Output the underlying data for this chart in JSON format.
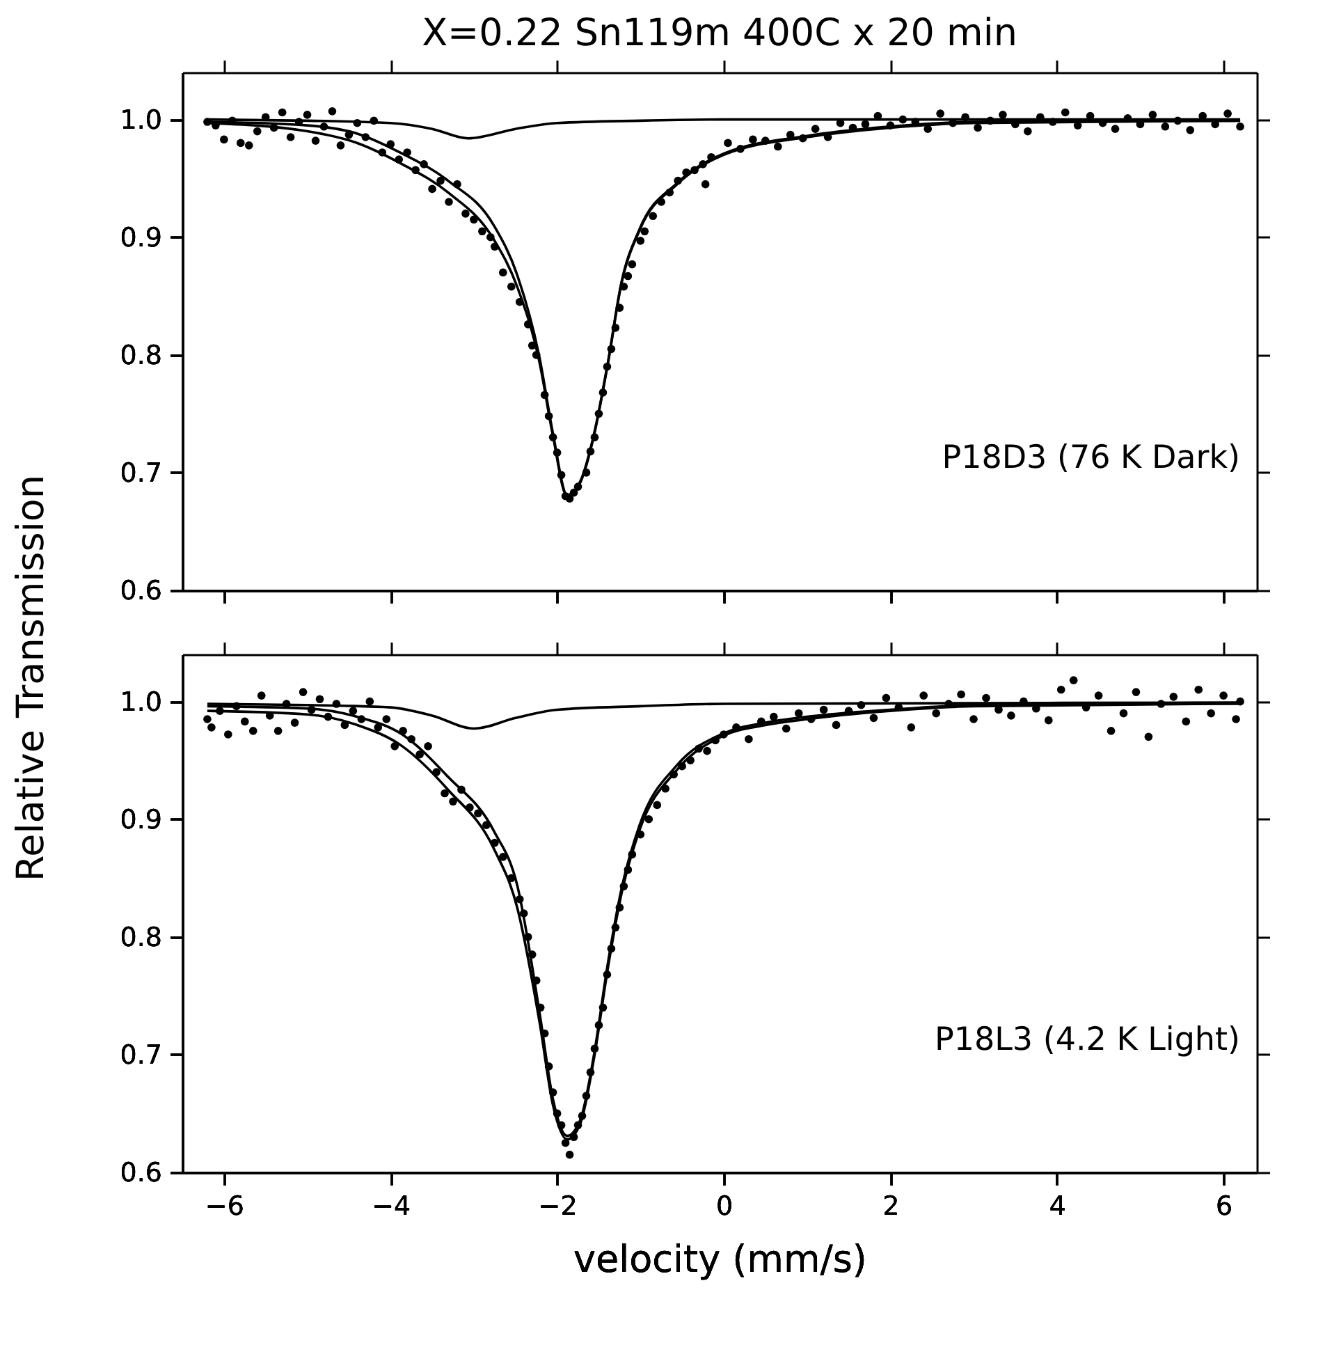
{
  "chart_data": [
    {
      "type": "scatter",
      "title": "X=0.22 Sn119m 400C x 20 min",
      "ylabel": "Relative Transmission",
      "annotations": [
        "P18D3 (76 K Dark)"
      ],
      "xlim": [
        -6.5,
        6.4
      ],
      "ylim": [
        0.6,
        1.04
      ],
      "xticks": [
        -6,
        -4,
        -2,
        0,
        2,
        4,
        6
      ],
      "yticks": [
        0.6,
        0.7,
        0.8,
        0.9,
        {
          "value": 1.0,
          "label": "1.0"
        }
      ],
      "tick_labels": "y",
      "series": [
        {
          "marker": "circle",
          "color": "#000000",
          "x": [
            -6.2,
            -6.1,
            -6.0,
            -5.9,
            -5.8,
            -5.7,
            -5.6,
            -5.5,
            -5.4,
            -5.3,
            -5.2,
            -5.1,
            -5.0,
            -4.9,
            -4.8,
            -4.7,
            -4.6,
            -4.5,
            -4.4,
            -4.3,
            -4.2,
            -4.1,
            -4.0,
            -3.9,
            -3.8,
            -3.7,
            -3.6,
            -3.5,
            -3.4,
            -3.3,
            -3.2,
            -3.1,
            -3.0,
            -2.9,
            -2.8,
            -2.75,
            -2.65,
            -2.55,
            -2.45,
            -2.35,
            -2.3,
            -2.25,
            -2.15,
            -2.1,
            -2.05,
            -2.0,
            -1.95,
            -1.9,
            -1.85,
            -1.8,
            -1.75,
            -1.65,
            -1.6,
            -1.55,
            -1.5,
            -1.45,
            -1.4,
            -1.35,
            -1.3,
            -1.25,
            -1.2,
            -1.15,
            -1.1,
            -1.0,
            -0.95,
            -0.85,
            -0.75,
            -0.65,
            -0.55,
            -0.45,
            -0.35,
            -0.25,
            -0.22,
            -0.15,
            0.05,
            0.2,
            0.35,
            0.5,
            0.65,
            0.8,
            0.95,
            1.1,
            1.25,
            1.4,
            1.55,
            1.7,
            1.85,
            2.0,
            2.15,
            2.3,
            2.45,
            2.6,
            2.75,
            2.9,
            3.05,
            3.2,
            3.35,
            3.5,
            3.65,
            3.8,
            3.95,
            4.1,
            4.25,
            4.4,
            4.55,
            4.7,
            4.85,
            5.0,
            5.15,
            5.3,
            5.45,
            5.6,
            5.75,
            5.9,
            6.05,
            6.2
          ],
          "values": [
            0.998,
            0.995,
            0.983,
            0.999,
            0.98,
            0.978,
            0.99,
            1.002,
            0.993,
            1.006,
            0.985,
            0.998,
            1.004,
            0.982,
            0.994,
            1.007,
            0.978,
            0.987,
            0.997,
            0.985,
            0.999,
            0.972,
            0.979,
            0.966,
            0.972,
            0.957,
            0.962,
            0.941,
            0.948,
            0.93,
            0.945,
            0.92,
            0.915,
            0.905,
            0.9,
            0.892,
            0.87,
            0.858,
            0.845,
            0.826,
            0.808,
            0.8,
            0.766,
            0.748,
            0.73,
            0.717,
            0.698,
            0.68,
            0.678,
            0.683,
            0.688,
            0.7,
            0.718,
            0.73,
            0.75,
            0.768,
            0.79,
            0.805,
            0.823,
            0.84,
            0.858,
            0.867,
            0.877,
            0.897,
            0.905,
            0.918,
            0.93,
            0.938,
            0.948,
            0.955,
            0.957,
            0.962,
            0.945,
            0.968,
            0.98,
            0.975,
            0.983,
            0.982,
            0.977,
            0.987,
            0.984,
            0.992,
            0.985,
            0.997,
            0.993,
            0.996,
            1.003,
            0.995,
            1.0,
            0.998,
            0.992,
            1.005,
            0.997,
            1.002,
            0.993,
            0.999,
            1.004,
            0.996,
            0.99,
            1.002,
            0.998,
            1.006,
            0.995,
            1.003,
            0.997,
            0.992,
            1.001,
            0.996,
            1.004,
            0.994,
            0.999,
            0.991,
            1.003,
            0.996,
            1.005,
            0.994
          ]
        },
        {
          "type": "line",
          "marker": "none",
          "line_style": "solid",
          "color": "#000000",
          "x": [
            -6.2,
            -5.0,
            -4.4,
            -3.86,
            -3.31,
            -2.76,
            -2.48,
            -2.21,
            -2.05,
            -1.88,
            -1.72,
            -1.56,
            -1.39,
            -1.23,
            -1.01,
            -0.56,
            0,
            1,
            2,
            3,
            6.2
          ],
          "values": [
            0.997,
            0.99,
            0.98,
            0.962,
            0.938,
            0.898,
            0.858,
            0.793,
            0.731,
            0.68,
            0.692,
            0.731,
            0.793,
            0.86,
            0.906,
            0.945,
            0.97,
            0.985,
            0.993,
            0.997,
            0.999
          ]
        },
        {
          "type": "line",
          "marker": "none",
          "line_style": "solid",
          "color": "#000000",
          "x": [
            -6.2,
            -5.0,
            -4.4,
            -3.86,
            -3.31,
            -2.76,
            -2.48,
            -2.21,
            -2.05,
            -1.88,
            -1.72,
            -1.56,
            -1.39,
            -1.23,
            -1.01,
            -0.56,
            0,
            1,
            2,
            3,
            6.2
          ],
          "values": [
            0.998,
            0.995,
            0.988,
            0.971,
            0.948,
            0.91,
            0.868,
            0.797,
            0.733,
            0.681,
            0.693,
            0.732,
            0.794,
            0.861,
            0.907,
            0.946,
            0.971,
            0.986,
            0.994,
            0.998,
            0.999
          ]
        },
        {
          "type": "line",
          "marker": "none",
          "line_style": "solid",
          "color": "#000000",
          "x": [
            -6.2,
            -5.0,
            -4.0,
            -3.5,
            -3.07,
            -2.5,
            -2.0,
            -1.0,
            0,
            6.2
          ],
          "values": [
            1.0,
            0.999,
            0.997,
            0.992,
            0.984,
            0.992,
            0.997,
            0.999,
            1.0,
            1.0
          ]
        }
      ]
    },
    {
      "type": "scatter",
      "xlabel": "velocity (mm/s)",
      "annotations": [
        "P18L3 (4.2 K Light)"
      ],
      "xlim": [
        -6.5,
        6.4
      ],
      "ylim": [
        0.6,
        1.04
      ],
      "xticks": [
        -6,
        -4,
        -2,
        0,
        2,
        4,
        6
      ],
      "yticks": [
        0.6,
        0.7,
        0.8,
        0.9,
        {
          "value": 1.0,
          "label": "1.0"
        }
      ],
      "series": [
        {
          "marker": "circle",
          "color": "#000000",
          "x": [
            -6.2,
            -6.15,
            -6.05,
            -5.95,
            -5.85,
            -5.75,
            -5.65,
            -5.55,
            -5.45,
            -5.35,
            -5.25,
            -5.15,
            -5.05,
            -4.95,
            -4.85,
            -4.75,
            -4.65,
            -4.55,
            -4.45,
            -4.35,
            -4.25,
            -4.15,
            -4.05,
            -3.95,
            -3.85,
            -3.75,
            -3.65,
            -3.55,
            -3.45,
            -3.35,
            -3.25,
            -3.15,
            -3.05,
            -2.95,
            -2.85,
            -2.75,
            -2.65,
            -2.55,
            -2.45,
            -2.4,
            -2.35,
            -2.3,
            -2.25,
            -2.2,
            -2.15,
            -2.1,
            -2.05,
            -2.0,
            -1.95,
            -1.9,
            -1.85,
            -1.8,
            -1.75,
            -1.7,
            -1.65,
            -1.6,
            -1.55,
            -1.5,
            -1.45,
            -1.4,
            -1.35,
            -1.3,
            -1.25,
            -1.2,
            -1.15,
            -1.1,
            -1.0,
            -0.9,
            -0.8,
            -0.7,
            -0.6,
            -0.5,
            -0.4,
            -0.3,
            -0.2,
            -0.1,
            0.0,
            0.15,
            0.3,
            0.45,
            0.6,
            0.75,
            0.9,
            1.05,
            1.2,
            1.35,
            1.5,
            1.65,
            1.8,
            1.95,
            2.1,
            2.25,
            2.4,
            2.55,
            2.7,
            2.85,
            3.0,
            3.15,
            3.3,
            3.45,
            3.6,
            3.75,
            3.9,
            4.05,
            4.2,
            4.35,
            4.5,
            4.65,
            4.8,
            4.95,
            5.1,
            5.25,
            5.4,
            5.55,
            5.7,
            5.85,
            6.0,
            6.15,
            6.2
          ],
          "values": [
            0.985,
            0.978,
            0.992,
            0.972,
            0.996,
            0.983,
            0.975,
            1.005,
            0.988,
            0.975,
            0.998,
            0.982,
            1.008,
            0.993,
            1.002,
            0.987,
            0.998,
            0.98,
            0.992,
            0.985,
            1.0,
            0.978,
            0.985,
            0.962,
            0.975,
            0.968,
            0.955,
            0.962,
            0.94,
            0.922,
            0.915,
            0.925,
            0.91,
            0.905,
            0.895,
            0.88,
            0.868,
            0.85,
            0.832,
            0.82,
            0.8,
            0.785,
            0.763,
            0.74,
            0.718,
            0.69,
            0.668,
            0.65,
            0.64,
            0.625,
            0.615,
            0.63,
            0.64,
            0.648,
            0.665,
            0.685,
            0.705,
            0.725,
            0.74,
            0.768,
            0.79,
            0.808,
            0.825,
            0.843,
            0.857,
            0.87,
            0.887,
            0.9,
            0.912,
            0.926,
            0.938,
            0.945,
            0.95,
            0.96,
            0.958,
            0.967,
            0.972,
            0.978,
            0.968,
            0.983,
            0.987,
            0.977,
            0.99,
            0.985,
            0.993,
            0.98,
            0.992,
            0.997,
            0.986,
            1.003,
            0.995,
            0.978,
            1.005,
            0.99,
            0.998,
            1.006,
            0.985,
            1.003,
            0.993,
            0.988,
            1.0,
            0.994,
            0.984,
            1.01,
            1.018,
            0.995,
            1.005,
            0.975,
            0.99,
            1.008,
            0.97,
            0.998,
            1.004,
            0.983,
            1.01,
            0.99,
            1.005,
            0.985,
            1.0
          ]
        },
        {
          "type": "line",
          "marker": "none",
          "line_style": "solid",
          "color": "#000000",
          "x": [
            -6.2,
            -5.0,
            -4.4,
            -3.86,
            -3.31,
            -2.76,
            -2.48,
            -2.21,
            -2.05,
            -1.88,
            -1.72,
            -1.56,
            -1.39,
            -1.23,
            -1.01,
            -0.56,
            0,
            0.5,
            1,
            2,
            3,
            6.2
          ],
          "values": [
            0.992,
            0.989,
            0.98,
            0.962,
            0.925,
            0.875,
            0.825,
            0.727,
            0.657,
            0.628,
            0.642,
            0.696,
            0.774,
            0.836,
            0.891,
            0.942,
            0.971,
            0.98,
            0.985,
            0.992,
            0.996,
            0.998
          ]
        },
        {
          "type": "line",
          "marker": "none",
          "line_style": "solid",
          "color": "#000000",
          "x": [
            -6.2,
            -5.0,
            -4.4,
            -3.86,
            -3.31,
            -2.76,
            -2.48,
            -2.21,
            -2.05,
            -1.88,
            -1.72,
            -1.56,
            -1.39,
            -1.23,
            -1.01,
            -0.56,
            0,
            0.5,
            1,
            2,
            3,
            6.2
          ],
          "values": [
            0.996,
            0.994,
            0.987,
            0.972,
            0.936,
            0.89,
            0.844,
            0.735,
            0.662,
            0.631,
            0.645,
            0.699,
            0.778,
            0.84,
            0.895,
            0.946,
            0.973,
            0.982,
            0.987,
            0.993,
            0.997,
            0.999
          ]
        },
        {
          "type": "line",
          "marker": "none",
          "line_style": "solid",
          "color": "#000000",
          "x": [
            -6.2,
            -5.0,
            -4.0,
            -3.5,
            -3.0,
            -2.5,
            -2.0,
            -1.0,
            0,
            6.2
          ],
          "values": [
            0.998,
            0.997,
            0.995,
            0.988,
            0.977,
            0.986,
            0.993,
            0.996,
            0.998,
            0.999
          ]
        }
      ]
    }
  ]
}
